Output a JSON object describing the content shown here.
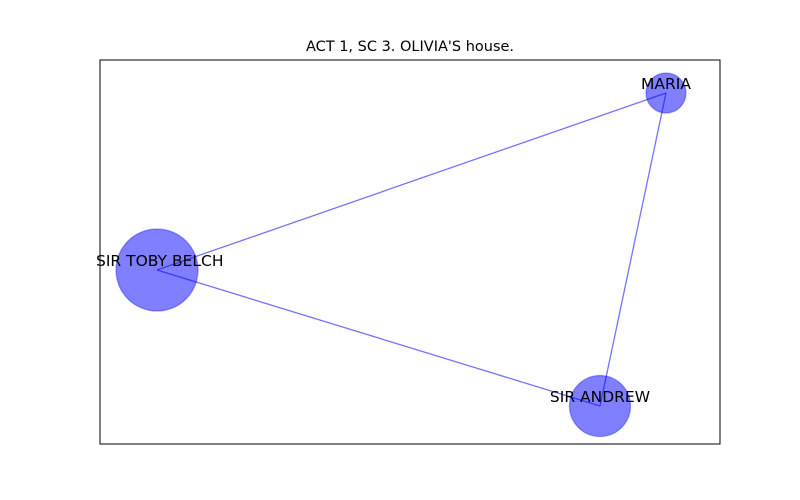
{
  "title": "ACT 1, SC 3. OLIVIA'S house.",
  "colors": {
    "node_fill": "#0000ff",
    "node_fill_opacity": 0.5,
    "edge_color": "#0000ff",
    "edge_opacity": 0.55,
    "frame": "#000000",
    "background": "#ffffff"
  },
  "graph": {
    "nodes": [
      {
        "id": "sir-toby-belch",
        "label": "SIR TOBY BELCH",
        "weight": 3
      },
      {
        "id": "maria",
        "label": "MARIA",
        "weight": 1
      },
      {
        "id": "sir-andrew",
        "label": "SIR ANDREW",
        "weight": 2
      }
    ],
    "edges": [
      {
        "source": "sir-toby-belch",
        "target": "maria"
      },
      {
        "source": "sir-toby-belch",
        "target": "sir-andrew"
      },
      {
        "source": "maria",
        "target": "sir-andrew"
      }
    ]
  }
}
